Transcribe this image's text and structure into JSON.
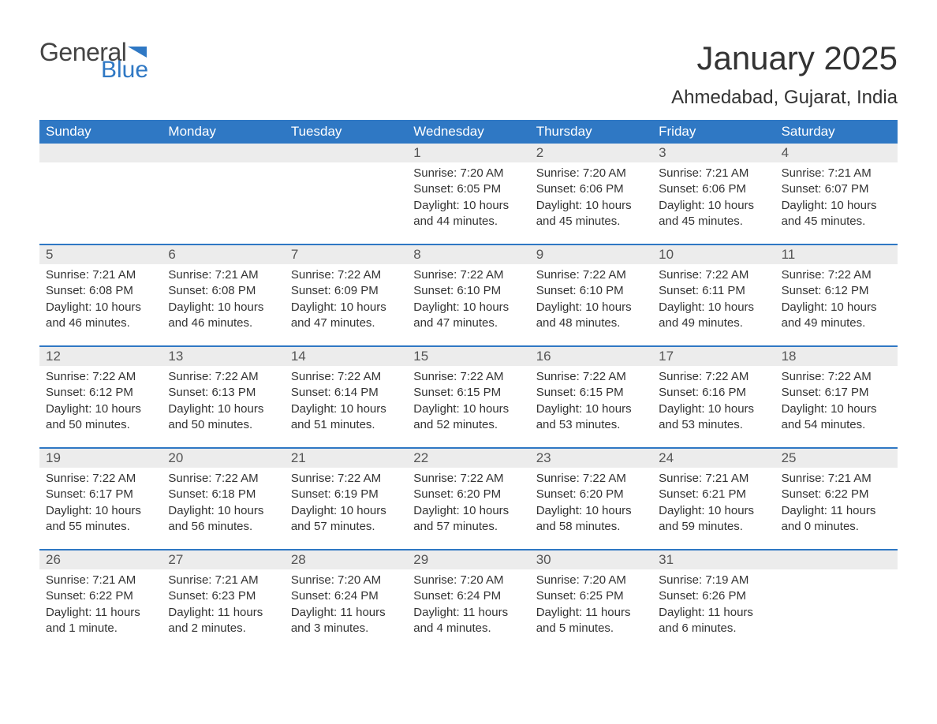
{
  "brand": {
    "word1": "General",
    "word2": "Blue",
    "flag_color": "#2f78c4"
  },
  "title": "January 2025",
  "subtitle": "Ahmedabad, Gujarat, India",
  "colors": {
    "header_bg": "#2f78c4",
    "header_text": "#ffffff",
    "daynum_bg": "#ececec",
    "text": "#333333",
    "rule": "#2f78c4",
    "page_bg": "#ffffff"
  },
  "fontsize": {
    "title": 42,
    "subtitle": 24,
    "weekday": 17,
    "daynum": 17,
    "body": 15
  },
  "weekdays": [
    "Sunday",
    "Monday",
    "Tuesday",
    "Wednesday",
    "Thursday",
    "Friday",
    "Saturday"
  ],
  "weeks": [
    [
      null,
      null,
      null,
      {
        "n": "1",
        "sunrise": "7:20 AM",
        "sunset": "6:05 PM",
        "daylight": "10 hours and 44 minutes."
      },
      {
        "n": "2",
        "sunrise": "7:20 AM",
        "sunset": "6:06 PM",
        "daylight": "10 hours and 45 minutes."
      },
      {
        "n": "3",
        "sunrise": "7:21 AM",
        "sunset": "6:06 PM",
        "daylight": "10 hours and 45 minutes."
      },
      {
        "n": "4",
        "sunrise": "7:21 AM",
        "sunset": "6:07 PM",
        "daylight": "10 hours and 45 minutes."
      }
    ],
    [
      {
        "n": "5",
        "sunrise": "7:21 AM",
        "sunset": "6:08 PM",
        "daylight": "10 hours and 46 minutes."
      },
      {
        "n": "6",
        "sunrise": "7:21 AM",
        "sunset": "6:08 PM",
        "daylight": "10 hours and 46 minutes."
      },
      {
        "n": "7",
        "sunrise": "7:22 AM",
        "sunset": "6:09 PM",
        "daylight": "10 hours and 47 minutes."
      },
      {
        "n": "8",
        "sunrise": "7:22 AM",
        "sunset": "6:10 PM",
        "daylight": "10 hours and 47 minutes."
      },
      {
        "n": "9",
        "sunrise": "7:22 AM",
        "sunset": "6:10 PM",
        "daylight": "10 hours and 48 minutes."
      },
      {
        "n": "10",
        "sunrise": "7:22 AM",
        "sunset": "6:11 PM",
        "daylight": "10 hours and 49 minutes."
      },
      {
        "n": "11",
        "sunrise": "7:22 AM",
        "sunset": "6:12 PM",
        "daylight": "10 hours and 49 minutes."
      }
    ],
    [
      {
        "n": "12",
        "sunrise": "7:22 AM",
        "sunset": "6:12 PM",
        "daylight": "10 hours and 50 minutes."
      },
      {
        "n": "13",
        "sunrise": "7:22 AM",
        "sunset": "6:13 PM",
        "daylight": "10 hours and 50 minutes."
      },
      {
        "n": "14",
        "sunrise": "7:22 AM",
        "sunset": "6:14 PM",
        "daylight": "10 hours and 51 minutes."
      },
      {
        "n": "15",
        "sunrise": "7:22 AM",
        "sunset": "6:15 PM",
        "daylight": "10 hours and 52 minutes."
      },
      {
        "n": "16",
        "sunrise": "7:22 AM",
        "sunset": "6:15 PM",
        "daylight": "10 hours and 53 minutes."
      },
      {
        "n": "17",
        "sunrise": "7:22 AM",
        "sunset": "6:16 PM",
        "daylight": "10 hours and 53 minutes."
      },
      {
        "n": "18",
        "sunrise": "7:22 AM",
        "sunset": "6:17 PM",
        "daylight": "10 hours and 54 minutes."
      }
    ],
    [
      {
        "n": "19",
        "sunrise": "7:22 AM",
        "sunset": "6:17 PM",
        "daylight": "10 hours and 55 minutes."
      },
      {
        "n": "20",
        "sunrise": "7:22 AM",
        "sunset": "6:18 PM",
        "daylight": "10 hours and 56 minutes."
      },
      {
        "n": "21",
        "sunrise": "7:22 AM",
        "sunset": "6:19 PM",
        "daylight": "10 hours and 57 minutes."
      },
      {
        "n": "22",
        "sunrise": "7:22 AM",
        "sunset": "6:20 PM",
        "daylight": "10 hours and 57 minutes."
      },
      {
        "n": "23",
        "sunrise": "7:22 AM",
        "sunset": "6:20 PM",
        "daylight": "10 hours and 58 minutes."
      },
      {
        "n": "24",
        "sunrise": "7:21 AM",
        "sunset": "6:21 PM",
        "daylight": "10 hours and 59 minutes."
      },
      {
        "n": "25",
        "sunrise": "7:21 AM",
        "sunset": "6:22 PM",
        "daylight": "11 hours and 0 minutes."
      }
    ],
    [
      {
        "n": "26",
        "sunrise": "7:21 AM",
        "sunset": "6:22 PM",
        "daylight": "11 hours and 1 minute."
      },
      {
        "n": "27",
        "sunrise": "7:21 AM",
        "sunset": "6:23 PM",
        "daylight": "11 hours and 2 minutes."
      },
      {
        "n": "28",
        "sunrise": "7:20 AM",
        "sunset": "6:24 PM",
        "daylight": "11 hours and 3 minutes."
      },
      {
        "n": "29",
        "sunrise": "7:20 AM",
        "sunset": "6:24 PM",
        "daylight": "11 hours and 4 minutes."
      },
      {
        "n": "30",
        "sunrise": "7:20 AM",
        "sunset": "6:25 PM",
        "daylight": "11 hours and 5 minutes."
      },
      {
        "n": "31",
        "sunrise": "7:19 AM",
        "sunset": "6:26 PM",
        "daylight": "11 hours and 6 minutes."
      },
      null
    ]
  ],
  "labels": {
    "sunrise": "Sunrise: ",
    "sunset": "Sunset: ",
    "daylight": "Daylight: "
  }
}
